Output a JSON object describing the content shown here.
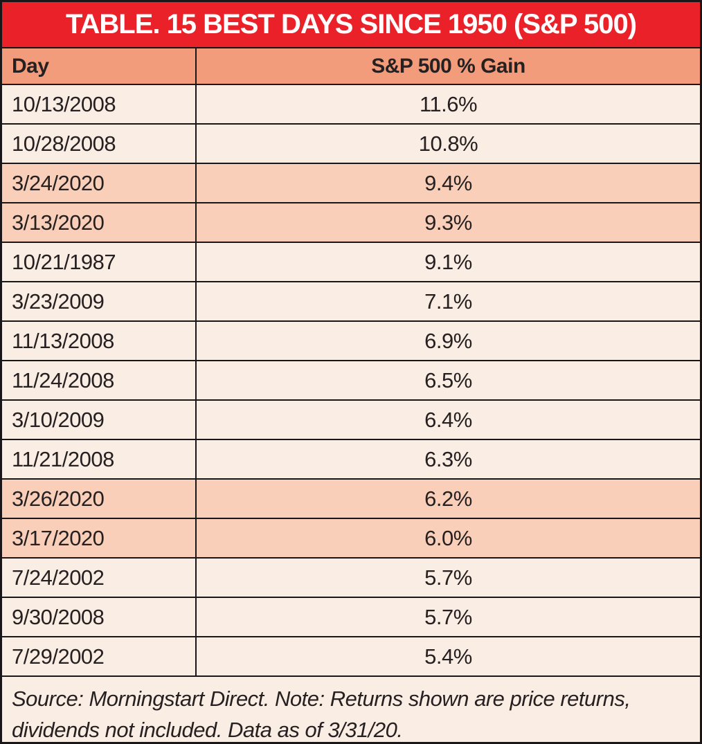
{
  "table": {
    "title": "TABLE. 15 BEST DAYS SINCE 1950 (S&P 500)",
    "columns": {
      "day": "Day",
      "gain": "S&P 500 % Gain"
    },
    "source_note": "Source: Morningstart Direct. Note: Returns shown are price returns, dividends not included. Data as of 3/31/20."
  },
  "colors": {
    "title_bar_bg": "#ea2128",
    "title_text": "#ffffff",
    "header_row_bg": "#f29c7c",
    "row_bg": "#faede4",
    "row_highlight_bg": "#f9cfba",
    "text": "#262021",
    "border": "#1a1617"
  },
  "chart_data": {
    "type": "table",
    "title": "TABLE. 15 BEST DAYS SINCE 1950 (S&P 500)",
    "columns": [
      "Day",
      "S&P 500 % Gain"
    ],
    "rows": [
      {
        "day": "10/13/2008",
        "gain": "11.6%",
        "highlight": false
      },
      {
        "day": "10/28/2008",
        "gain": "10.8%",
        "highlight": false
      },
      {
        "day": "3/24/2020",
        "gain": "9.4%",
        "highlight": true
      },
      {
        "day": "3/13/2020",
        "gain": "9.3%",
        "highlight": true
      },
      {
        "day": "10/21/1987",
        "gain": "9.1%",
        "highlight": false
      },
      {
        "day": "3/23/2009",
        "gain": "7.1%",
        "highlight": false
      },
      {
        "day": "11/13/2008",
        "gain": "6.9%",
        "highlight": false
      },
      {
        "day": "11/24/2008",
        "gain": "6.5%",
        "highlight": false
      },
      {
        "day": "3/10/2009",
        "gain": "6.4%",
        "highlight": false
      },
      {
        "day": "11/21/2008",
        "gain": "6.3%",
        "highlight": false
      },
      {
        "day": "3/26/2020",
        "gain": "6.2%",
        "highlight": true
      },
      {
        "day": "3/17/2020",
        "gain": "6.0%",
        "highlight": true
      },
      {
        "day": "7/24/2002",
        "gain": "5.7%",
        "highlight": false
      },
      {
        "day": "9/30/2008",
        "gain": "5.7%",
        "highlight": false
      },
      {
        "day": "7/29/2002",
        "gain": "5.4%",
        "highlight": false
      }
    ],
    "notes": "Source: Morningstart Direct. Note: Returns shown are price returns, dividends not included. Data as of 3/31/20.",
    "highlight_meaning": "Rows with 2020 dates are shaded darker salmon"
  }
}
